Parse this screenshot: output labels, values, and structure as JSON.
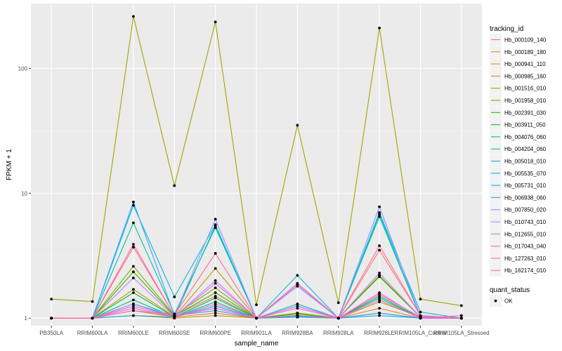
{
  "chart_data": {
    "type": "line",
    "xlabel": "sample_name",
    "ylabel": "FPKM + 1",
    "y_scale": "log10",
    "ylim": [
      0.87,
      330
    ],
    "y_ticks": [
      {
        "value": 1,
        "label": "1"
      },
      {
        "value": 10,
        "label": "10"
      },
      {
        "value": 100,
        "label": "100"
      }
    ],
    "categories": [
      "PB350LA",
      "RRIM600LA",
      "RRIM600LE",
      "RRIM600SE",
      "RRIM600PE",
      "RRIM901LA",
      "RRIM928BA",
      "RRIM928LA",
      "RRIM928LE",
      "RRIM105LA_Control",
      "RRIM105LA_Stressed"
    ],
    "grid": true,
    "legend": {
      "position": "right",
      "title": "tracking_id",
      "shape_title": "quant_status",
      "shape_entries": [
        "OK"
      ]
    },
    "series": [
      {
        "name": "Hb_000109_140",
        "color": "#F8766D",
        "values": [
          1,
          1,
          3.7,
          1.05,
          1.5,
          1,
          1.05,
          1,
          3.5,
          1.05,
          1
        ]
      },
      {
        "name": "Hb_000189_180",
        "color": "#EA8331",
        "values": [
          1,
          1,
          1.15,
          1.02,
          1.1,
          1,
          1.03,
          1,
          1.2,
          1,
          1
        ]
      },
      {
        "name": "Hb_000941_110",
        "color": "#D89000",
        "values": [
          1,
          1,
          1.05,
          1,
          1.05,
          1,
          1.02,
          1,
          1.1,
          1,
          1
        ]
      },
      {
        "name": "Hb_000985_160",
        "color": "#C09B00",
        "values": [
          1,
          1,
          1.7,
          1.03,
          2.5,
          1,
          1.1,
          1,
          1.35,
          1.02,
          1
        ]
      },
      {
        "name": "Hb_001516_010",
        "color": "#A3A500",
        "values": [
          1.42,
          1.36,
          260,
          11.5,
          235,
          1.28,
          35,
          1.33,
          210,
          1.42,
          1.26
        ]
      },
      {
        "name": "Hb_001958_010",
        "color": "#7CAE00",
        "values": [
          1,
          1,
          2.6,
          1.05,
          1.75,
          1,
          1.1,
          1,
          2.2,
          1.02,
          1
        ]
      },
      {
        "name": "Hb_002391_030",
        "color": "#39B600",
        "values": [
          1,
          1,
          2.35,
          1.04,
          1.6,
          1,
          1.08,
          1,
          2.15,
          1.02,
          1
        ]
      },
      {
        "name": "Hb_003911_050",
        "color": "#00BB4E",
        "values": [
          1,
          1,
          1.6,
          1.02,
          1.45,
          1,
          1.05,
          1,
          1.5,
          1,
          1
        ]
      },
      {
        "name": "Hb_004076_060",
        "color": "#00BF7D",
        "values": [
          1,
          1,
          1.4,
          1.02,
          1.35,
          1,
          1.04,
          1,
          1.45,
          1,
          1
        ]
      },
      {
        "name": "Hb_004204_060",
        "color": "#00C1A3",
        "values": [
          1,
          1,
          5.8,
          1.08,
          5.3,
          1,
          1.25,
          1,
          6.5,
          1.03,
          1
        ]
      },
      {
        "name": "Hb_005018_010",
        "color": "#00BFC4",
        "values": [
          1,
          1,
          1.3,
          1.02,
          5.5,
          1,
          1.3,
          1,
          6.8,
          1.03,
          1
        ]
      },
      {
        "name": "Hb_005535_070",
        "color": "#00BAE0",
        "values": [
          1,
          1,
          8.0,
          1.48,
          5.6,
          1,
          2.2,
          1,
          7.0,
          1.12,
          1
        ]
      },
      {
        "name": "Hb_005731_010",
        "color": "#00B0F6",
        "values": [
          1,
          1,
          1.05,
          1.02,
          1.25,
          1,
          1.02,
          1,
          1.05,
          1,
          1
        ]
      },
      {
        "name": "Hb_006938_060",
        "color": "#35A2FF",
        "values": [
          1,
          1,
          8.5,
          1.05,
          1.15,
          1,
          1.04,
          1,
          1.1,
          1,
          1
        ]
      },
      {
        "name": "Hb_007850_020",
        "color": "#9590FF",
        "values": [
          1,
          1,
          1.3,
          1.05,
          6.2,
          1,
          1.8,
          1,
          7.8,
          1.03,
          1
        ]
      },
      {
        "name": "Hb_010743_010",
        "color": "#C77CFF",
        "values": [
          1,
          1,
          2.1,
          1.03,
          2.0,
          1,
          1.85,
          1,
          2.3,
          1.02,
          1
        ]
      },
      {
        "name": "Hb_012655_010",
        "color": "#E76BF3",
        "values": [
          1,
          1,
          1.2,
          1.02,
          1.9,
          1,
          1.25,
          1,
          1.4,
          1,
          1
        ]
      },
      {
        "name": "Hb_017043_040",
        "color": "#FA62DB",
        "values": [
          1,
          1,
          1.25,
          1.02,
          1.3,
          1,
          1.2,
          1,
          1.6,
          1,
          1.05
        ]
      },
      {
        "name": "Hb_127263_010",
        "color": "#FF62BC",
        "values": [
          1,
          1,
          3.9,
          1.04,
          1.2,
          1,
          1.05,
          1,
          1.55,
          1.02,
          1
        ]
      },
      {
        "name": "Hb_162174_010",
        "color": "#FF6C91",
        "values": [
          1,
          1,
          1.15,
          1.06,
          3.3,
          1,
          1.9,
          1,
          3.8,
          1.05,
          1
        ]
      }
    ]
  }
}
